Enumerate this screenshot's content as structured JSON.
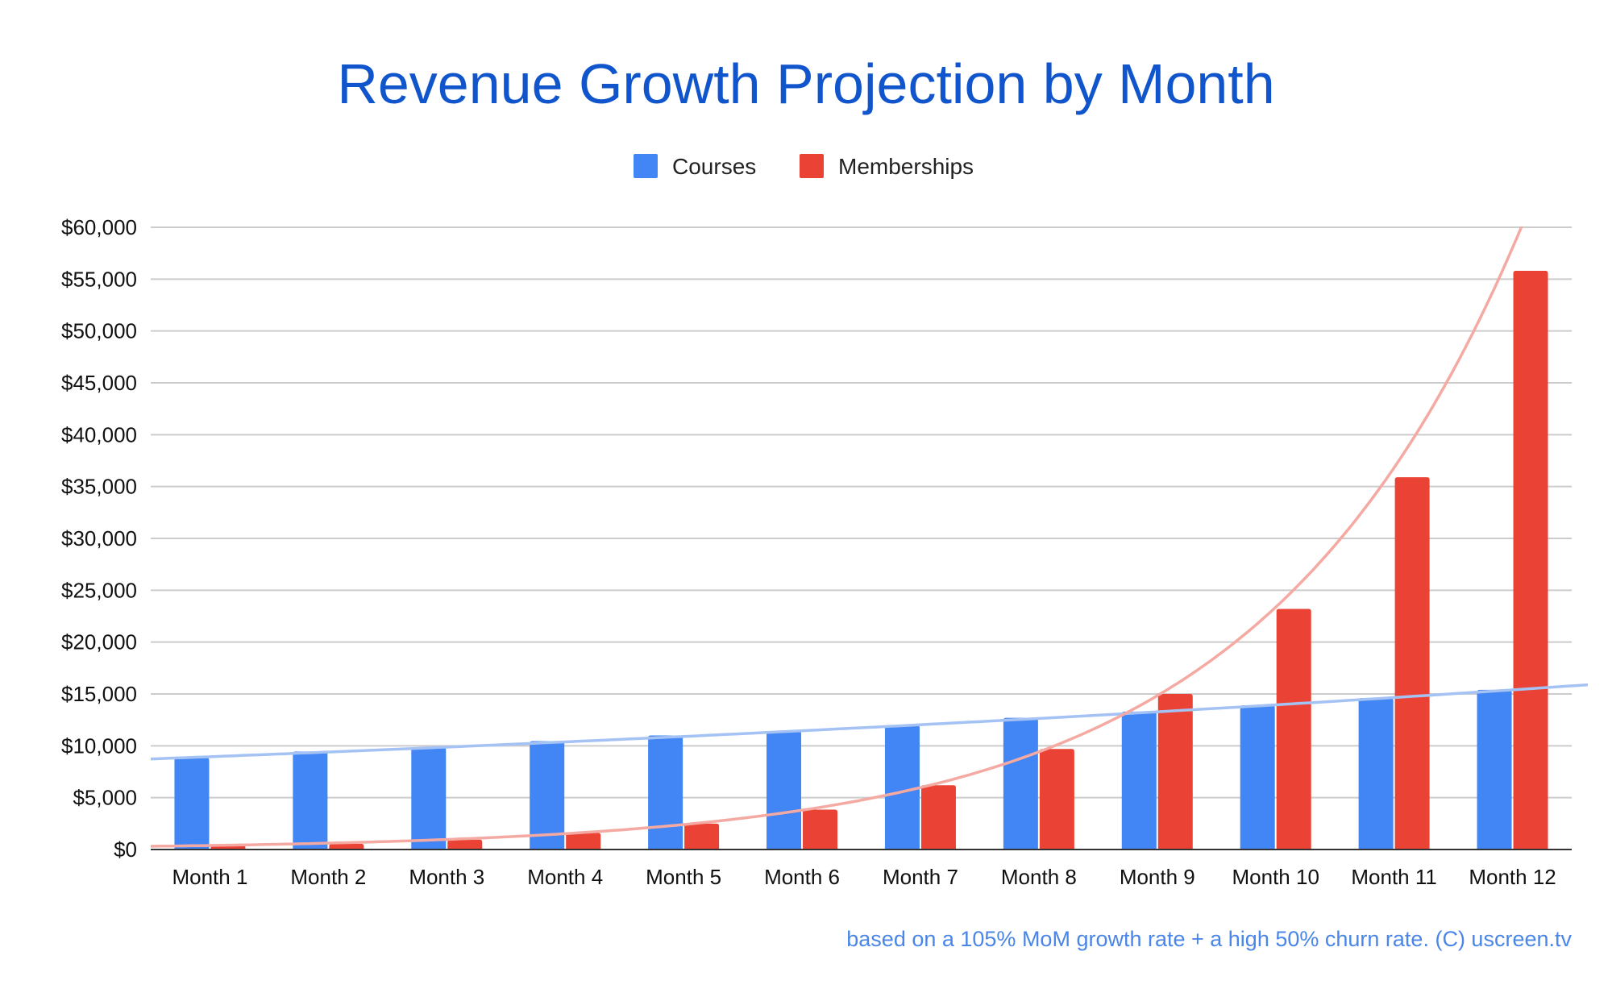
{
  "chart_data": {
    "type": "bar",
    "title": "Revenue Growth Projection by Month",
    "xlabel": "",
    "ylabel": "",
    "categories": [
      "Month 1",
      "Month 2",
      "Month 3",
      "Month 4",
      "Month 5",
      "Month 6",
      "Month 7",
      "Month 8",
      "Month 9",
      "Month 10",
      "Month 11",
      "Month 12"
    ],
    "series": [
      {
        "name": "Courses",
        "color": "#4285f4",
        "trend_color": "#a4c2f4",
        "values": [
          8850,
          9450,
          9850,
          10450,
          11000,
          11400,
          12000,
          12700,
          13300,
          13900,
          14600,
          15400
        ]
      },
      {
        "name": "Memberships",
        "color": "#ea4335",
        "trend_color": "#f4aaa3",
        "values": [
          400,
          550,
          950,
          1600,
          2500,
          3850,
          6200,
          9700,
          15000,
          23200,
          35900,
          55800
        ]
      }
    ],
    "ylim": [
      0,
      60000
    ],
    "yticks": [
      0,
      5000,
      10000,
      15000,
      20000,
      25000,
      30000,
      35000,
      40000,
      45000,
      50000,
      55000,
      60000
    ],
    "ytick_labels": [
      "$0",
      "$5,000",
      "$10,000",
      "$15,000",
      "$20,000",
      "$25,000",
      "$30,000",
      "$35,000",
      "$40,000",
      "$45,000",
      "$50,000",
      "$55,000",
      "$60,000"
    ],
    "grid": true,
    "legend_position": "top-center",
    "trendlines": true,
    "footnote": "based on a 105% MoM growth rate + a high 50% churn rate. (C) uscreen.tv"
  }
}
